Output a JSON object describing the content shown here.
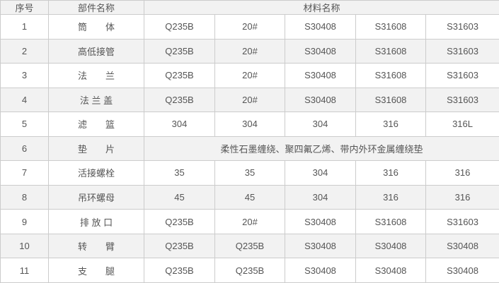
{
  "colors": {
    "border": "#cccccc",
    "stripe_bg": "#f2f2f2",
    "row_bg": "#ffffff",
    "text": "#555555"
  },
  "table": {
    "headers": {
      "serial": "序号",
      "part": "部件名称",
      "material": "材料名称"
    },
    "rows": [
      {
        "no": "1",
        "part": "筒　　体",
        "materials": [
          "Q235B",
          "20#",
          "S30408",
          "S31608",
          "S31603"
        ]
      },
      {
        "no": "2",
        "part": "高低接管",
        "materials": [
          "Q235B",
          "20#",
          "S30408",
          "S31608",
          "S31603"
        ]
      },
      {
        "no": "3",
        "part": "法　　兰",
        "materials": [
          "Q235B",
          "20#",
          "S30408",
          "S31608",
          "S31603"
        ]
      },
      {
        "no": "4",
        "part": "法 兰 盖",
        "materials": [
          "Q235B",
          "20#",
          "S30408",
          "S31608",
          "S31603"
        ]
      },
      {
        "no": "5",
        "part": "滤　　篮",
        "materials": [
          "304",
          "304",
          "304",
          "316",
          "316L"
        ]
      },
      {
        "no": "6",
        "part": "垫　　片",
        "materials_merged": "柔性石墨缠绕、聚四氟乙烯、带内外环金属缠绕垫"
      },
      {
        "no": "7",
        "part": "活接螺栓",
        "materials": [
          "35",
          "35",
          "304",
          "316",
          "316"
        ]
      },
      {
        "no": "8",
        "part": "吊环螺母",
        "materials": [
          "45",
          "45",
          "304",
          "316",
          "316"
        ]
      },
      {
        "no": "9",
        "part": "排 放 口",
        "materials": [
          "Q235B",
          "20#",
          "S30408",
          "S31608",
          "S31603"
        ]
      },
      {
        "no": "10",
        "part": "转　　臂",
        "materials": [
          "Q235B",
          "Q235B",
          "S30408",
          "S30408",
          "S30408"
        ]
      },
      {
        "no": "11",
        "part": "支　　腿",
        "materials": [
          "Q235B",
          "Q235B",
          "S30408",
          "S30408",
          "S30408"
        ]
      }
    ]
  }
}
